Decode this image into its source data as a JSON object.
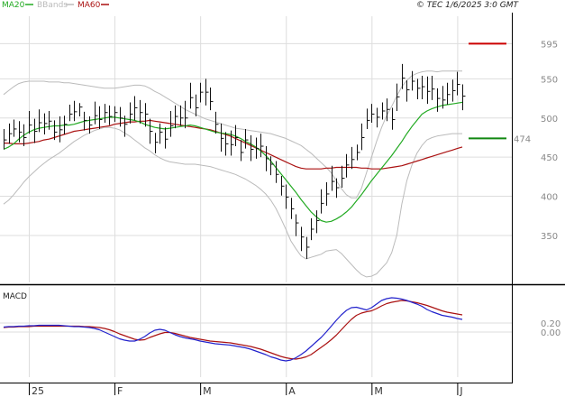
{
  "header": {
    "legend": [
      {
        "label": "MA20",
        "color": "#22aa22"
      },
      {
        "label": "BBands",
        "color": "#bbbbbb"
      },
      {
        "label": "MA60",
        "color": "#aa1111"
      }
    ],
    "copyright": "© TEC 1/6/2025 3:0 GMT"
  },
  "chart_data": [
    {
      "type": "line",
      "name": "price",
      "ylim": [
        290,
        630
      ],
      "yticks": [
        350,
        400,
        450,
        500,
        550,
        595
      ],
      "ytick_labels": [
        "350",
        "400",
        "450",
        "500",
        "550",
        "595"
      ],
      "xlabels": [
        "25",
        "F",
        "M",
        "A",
        "M",
        "J"
      ],
      "xlabel_bars": [
        5,
        22,
        39,
        56,
        73,
        90
      ],
      "n_bars": 92,
      "ohlc_close": [
        472,
        480,
        486,
        482,
        475,
        491,
        483,
        494,
        493,
        496,
        482,
        485,
        492,
        505,
        508,
        514,
        497,
        491,
        503,
        498,
        507,
        502,
        507,
        500,
        492,
        505,
        513,
        507,
        505,
        483,
        469,
        482,
        473,
        490,
        502,
        500,
        500,
        526,
        513,
        533,
        533,
        521,
        492,
        474,
        467,
        466,
        475,
        456,
        472,
        460,
        461,
        464,
        448,
        441,
        428,
        413,
        399,
        384,
        366,
        348,
        335,
        358,
        369,
        391,
        403,
        419,
        411,
        423,
        440,
        447,
        456,
        475,
        497,
        505,
        501,
        509,
        511,
        498,
        527,
        551,
        536,
        547,
        538,
        540,
        534,
        537,
        525,
        523,
        530,
        535,
        543,
        528
      ],
      "ohlc_high": [
        486,
        493,
        498,
        496,
        492,
        509,
        499,
        511,
        506,
        509,
        497,
        502,
        503,
        517,
        522,
        519,
        508,
        502,
        521,
        515,
        518,
        516,
        515,
        514,
        503,
        520,
        528,
        523,
        519,
        499,
        481,
        493,
        488,
        509,
        516,
        516,
        522,
        545,
        530,
        545,
        550,
        539,
        508,
        493,
        482,
        484,
        491,
        472,
        486,
        478,
        475,
        480,
        464,
        451,
        445,
        426,
        415,
        398,
        377,
        361,
        348,
        372,
        382,
        409,
        418,
        439,
        423,
        439,
        454,
        463,
        466,
        493,
        512,
        518,
        513,
        520,
        525,
        513,
        544,
        569,
        548,
        560,
        550,
        554,
        553,
        554,
        538,
        541,
        545,
        549,
        559,
        543
      ],
      "ohlc_low": [
        460,
        467,
        476,
        469,
        464,
        480,
        468,
        482,
        479,
        485,
        472,
        469,
        479,
        496,
        496,
        502,
        484,
        480,
        492,
        486,
        494,
        491,
        495,
        489,
        476,
        493,
        497,
        493,
        489,
        467,
        455,
        467,
        461,
        476,
        487,
        490,
        487,
        512,
        502,
        520,
        516,
        510,
        480,
        457,
        452,
        452,
        464,
        445,
        461,
        445,
        448,
        450,
        432,
        427,
        417,
        401,
        384,
        371,
        349,
        330,
        320,
        344,
        353,
        378,
        388,
        407,
        398,
        411,
        424,
        435,
        446,
        459,
        486,
        494,
        488,
        498,
        496,
        485,
        509,
        537,
        521,
        535,
        524,
        524,
        518,
        523,
        508,
        512,
        517,
        521,
        529,
        510
      ],
      "ma20": [
        460,
        463,
        467,
        473,
        478,
        482,
        485,
        487,
        488,
        489,
        490,
        490,
        491,
        491,
        492,
        494,
        496,
        497,
        498,
        499,
        500,
        501,
        501,
        500,
        499,
        498,
        497,
        495,
        492,
        490,
        488,
        487,
        486,
        487,
        488,
        489,
        490,
        491,
        490,
        488,
        486,
        484,
        482,
        481,
        480,
        479,
        477,
        474,
        470,
        467,
        463,
        458,
        452,
        445,
        437,
        429,
        421,
        413,
        405,
        396,
        388,
        380,
        374,
        369,
        367,
        368,
        371,
        375,
        380,
        386,
        394,
        402,
        411,
        420,
        428,
        436,
        444,
        452,
        461,
        470,
        480,
        489,
        497,
        505,
        509,
        512,
        514,
        516,
        517,
        518,
        519,
        520
      ],
      "ma60": [
        468,
        468,
        467,
        467,
        467,
        468,
        469,
        470,
        472,
        473,
        475,
        477,
        479,
        481,
        483,
        484,
        485,
        486,
        487,
        488,
        489,
        490,
        492,
        493,
        494,
        495,
        495,
        496,
        496,
        497,
        496,
        495,
        494,
        493,
        492,
        491,
        490,
        489,
        488,
        487,
        486,
        485,
        483,
        481,
        479,
        477,
        474,
        471,
        468,
        465,
        462,
        459,
        456,
        453,
        450,
        447,
        444,
        441,
        438,
        436,
        435,
        435,
        435,
        435,
        436,
        436,
        437,
        437,
        437,
        437,
        437,
        436,
        436,
        435,
        435,
        435,
        436,
        437,
        438,
        439,
        441,
        443,
        445,
        447,
        449,
        451,
        453,
        455,
        457,
        459,
        461,
        463
      ],
      "bb_upper": [
        530,
        535,
        540,
        544,
        546,
        547,
        547,
        547,
        547,
        546,
        546,
        546,
        545,
        545,
        544,
        543,
        542,
        541,
        540,
        539,
        538,
        538,
        538,
        539,
        540,
        541,
        542,
        542,
        541,
        538,
        534,
        531,
        527,
        523,
        519,
        515,
        511,
        508,
        505,
        502,
        499,
        497,
        495,
        493,
        491,
        489,
        487,
        486,
        485,
        484,
        483,
        482,
        481,
        480,
        478,
        476,
        474,
        471,
        468,
        465,
        460,
        455,
        449,
        443,
        437,
        430,
        420,
        410,
        402,
        398,
        398,
        410,
        430,
        450,
        470,
        488,
        503,
        515,
        528,
        540,
        548,
        554,
        557,
        559,
        560,
        560,
        559,
        560,
        560,
        560,
        560,
        560
      ],
      "bb_lower": [
        390,
        395,
        402,
        410,
        418,
        425,
        431,
        437,
        442,
        447,
        451,
        455,
        460,
        465,
        470,
        474,
        478,
        481,
        484,
        486,
        488,
        488,
        487,
        485,
        481,
        477,
        472,
        467,
        462,
        458,
        453,
        449,
        446,
        444,
        443,
        442,
        441,
        441,
        441,
        440,
        439,
        438,
        436,
        434,
        432,
        430,
        428,
        425,
        422,
        418,
        414,
        409,
        403,
        395,
        385,
        372,
        358,
        343,
        333,
        324,
        320,
        322,
        324,
        326,
        330,
        331,
        332,
        327,
        320,
        313,
        306,
        300,
        297,
        298,
        301,
        308,
        315,
        328,
        350,
        390,
        420,
        440,
        455,
        465,
        472,
        475,
        477,
        478,
        479,
        480,
        480,
        480
      ],
      "reference_lines": [
        {
          "value": 595,
          "label": "595",
          "color": "#cc0000"
        },
        {
          "value": 474,
          "label": "474",
          "color": "#118811"
        }
      ]
    },
    {
      "type": "line",
      "name": "MACD",
      "title": "MACD",
      "ylim": [
        -1.0,
        1.0
      ],
      "yticks": [
        0.2,
        0.0
      ],
      "ytick_labels": [
        "0.20",
        "0.00"
      ],
      "macd": [
        0.11,
        0.12,
        0.12,
        0.13,
        0.13,
        0.14,
        0.14,
        0.15,
        0.15,
        0.15,
        0.15,
        0.15,
        0.14,
        0.13,
        0.12,
        0.12,
        0.11,
        0.1,
        0.08,
        0.05,
        0.0,
        -0.05,
        -0.1,
        -0.15,
        -0.18,
        -0.2,
        -0.2,
        -0.16,
        -0.1,
        -0.02,
        0.04,
        0.06,
        0.04,
        -0.01,
        -0.06,
        -0.1,
        -0.13,
        -0.15,
        -0.17,
        -0.2,
        -0.22,
        -0.24,
        -0.26,
        -0.27,
        -0.28,
        -0.29,
        -0.31,
        -0.33,
        -0.35,
        -0.38,
        -0.42,
        -0.46,
        -0.5,
        -0.55,
        -0.58,
        -0.62,
        -0.64,
        -0.62,
        -0.57,
        -0.5,
        -0.42,
        -0.32,
        -0.22,
        -0.12,
        0.0,
        0.13,
        0.26,
        0.38,
        0.48,
        0.54,
        0.55,
        0.52,
        0.49,
        0.54,
        0.62,
        0.7,
        0.74,
        0.76,
        0.75,
        0.73,
        0.7,
        0.66,
        0.62,
        0.57,
        0.5,
        0.45,
        0.41,
        0.37,
        0.35,
        0.33,
        0.3,
        0.28
      ],
      "signal": [
        0.1,
        0.11,
        0.11,
        0.12,
        0.12,
        0.12,
        0.13,
        0.13,
        0.13,
        0.13,
        0.13,
        0.13,
        0.13,
        0.13,
        0.13,
        0.13,
        0.12,
        0.12,
        0.11,
        0.1,
        0.08,
        0.05,
        0.01,
        -0.04,
        -0.08,
        -0.12,
        -0.16,
        -0.18,
        -0.17,
        -0.12,
        -0.08,
        -0.04,
        -0.01,
        -0.01,
        -0.03,
        -0.06,
        -0.09,
        -0.12,
        -0.14,
        -0.16,
        -0.18,
        -0.2,
        -0.21,
        -0.22,
        -0.23,
        -0.24,
        -0.26,
        -0.28,
        -0.3,
        -0.32,
        -0.35,
        -0.38,
        -0.42,
        -0.46,
        -0.5,
        -0.54,
        -0.57,
        -0.59,
        -0.6,
        -0.58,
        -0.55,
        -0.5,
        -0.42,
        -0.34,
        -0.26,
        -0.17,
        -0.07,
        0.05,
        0.17,
        0.28,
        0.37,
        0.42,
        0.45,
        0.47,
        0.52,
        0.58,
        0.63,
        0.66,
        0.68,
        0.7,
        0.69,
        0.67,
        0.65,
        0.62,
        0.59,
        0.55,
        0.51,
        0.47,
        0.44,
        0.42,
        0.4,
        0.38
      ]
    }
  ]
}
